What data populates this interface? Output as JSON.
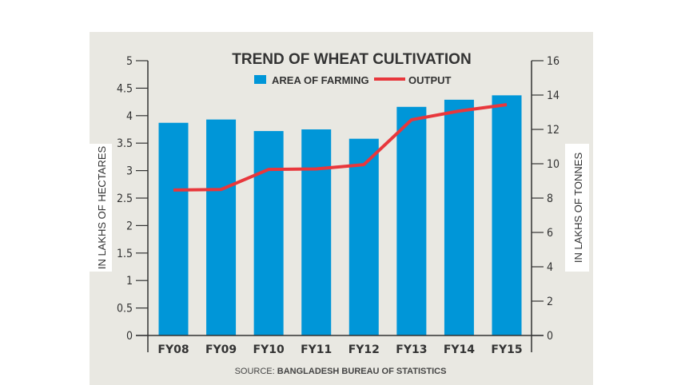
{
  "chart_data": {
    "type": "bar+line",
    "title": "TREND OF WHEAT CULTIVATION",
    "categories": [
      "FY08",
      "FY09",
      "FY10",
      "FY11",
      "FY12",
      "FY13",
      "FY14",
      "FY15"
    ],
    "series": [
      {
        "name": "AREA OF FARMING",
        "type": "bar",
        "axis": "left",
        "color": "#0096d8",
        "values": [
          3.87,
          3.93,
          3.72,
          3.75,
          3.58,
          4.16,
          4.29,
          4.37
        ]
      },
      {
        "name": "OUTPUT",
        "type": "line",
        "axis": "right",
        "color": "#e8373c",
        "values": [
          8.47,
          8.5,
          9.67,
          9.7,
          9.95,
          12.56,
          13.07,
          13.44
        ]
      }
    ],
    "ylabel_left": "IN LAKHS OF HECTARES",
    "ylim_left": [
      0,
      5
    ],
    "yticks_left": [
      "0",
      "0.5",
      "1",
      "1.5",
      "2",
      "2.5",
      "3",
      "3.5",
      "4",
      "4.5",
      "5"
    ],
    "ylabel_right": "IN LAKHS OF TONNES",
    "ylim_right": [
      0,
      16
    ],
    "yticks_right": [
      "0",
      "2",
      "4",
      "6",
      "8",
      "10",
      "12",
      "14",
      "16"
    ],
    "legend_position": "top-center",
    "grid": false,
    "source_prefix": "SOURCE:",
    "source": "BANGLADESH BUREAU OF STATISTICS"
  }
}
